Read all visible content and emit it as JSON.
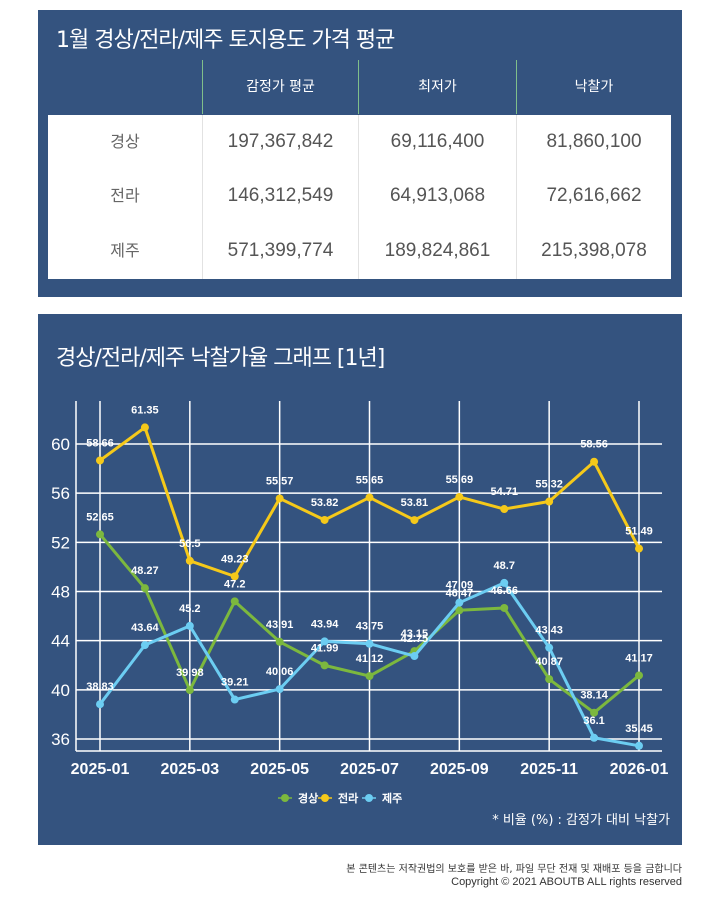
{
  "table_section": {
    "title": "1월 경상/전라/제주 토지용도 가격 평균",
    "columns": [
      "",
      "감정가 평균",
      "최저가",
      "낙찰가"
    ],
    "rows": [
      {
        "region": "경상",
        "appraisal_avg": "197,367,842",
        "minimum": "69,116,400",
        "winning_bid": "81,860,100"
      },
      {
        "region": "전라",
        "appraisal_avg": "146,312,549",
        "minimum": "64,913,068",
        "winning_bid": "72,616,662"
      },
      {
        "region": "제주",
        "appraisal_avg": "571,399,774",
        "minimum": "189,824,861",
        "winning_bid": "215,398,078"
      }
    ]
  },
  "chart_section": {
    "title": "경상/전라/제주 낙찰가율 그래프 [1년]",
    "note": "* 비율 (%) : 감정가 대비 낙찰가"
  },
  "chart_data": {
    "type": "line",
    "title": "경상/전라/제주 낙찰가율 그래프 [1년]",
    "xlabel": "",
    "ylabel": "",
    "x": [
      "2025-01",
      "2025-02",
      "2025-03",
      "2025-04",
      "2025-05",
      "2025-06",
      "2025-07",
      "2025-08",
      "2025-09",
      "2025-10",
      "2025-11",
      "2025-12",
      "2026-01"
    ],
    "x_tick_labels": [
      "2025-01",
      "2025-03",
      "2025-05",
      "2025-07",
      "2025-09",
      "2025-11",
      "2026-01"
    ],
    "y_ticks": [
      36,
      40,
      44,
      48,
      52,
      56,
      60
    ],
    "ylim": [
      35,
      63.5
    ],
    "grid": true,
    "legend": "bottom-center",
    "series": [
      {
        "name": "경상",
        "color": "#7cb83e",
        "values": [
          52.65,
          48.27,
          39.98,
          47.2,
          43.91,
          41.99,
          41.12,
          43.15,
          46.47,
          46.66,
          40.87,
          38.14,
          41.17
        ]
      },
      {
        "name": "전라",
        "color": "#f5c91a",
        "values": [
          58.66,
          61.35,
          50.5,
          49.23,
          55.57,
          53.82,
          55.65,
          53.81,
          55.69,
          54.71,
          55.32,
          58.56,
          51.49
        ]
      },
      {
        "name": "제주",
        "color": "#6ccdf2",
        "values": [
          38.83,
          43.64,
          45.2,
          39.21,
          40.06,
          43.94,
          43.75,
          42.75,
          47.09,
          48.7,
          43.43,
          36.1,
          35.45
        ]
      }
    ],
    "note": "* 비율 (%) : 감정가 대비 낙찰가"
  },
  "footer": {
    "notice": "본 콘텐츠는 저작권법의 보호를 받은 바, 파일 무단 전재 및 재배포 등을 금합니다",
    "copyright": "Copyright © 2021 ABOUTB ALL rights reserved"
  },
  "colors": {
    "panel_bg": "#34537f",
    "grid": "#ffffff",
    "text_light": "#ffffff"
  }
}
